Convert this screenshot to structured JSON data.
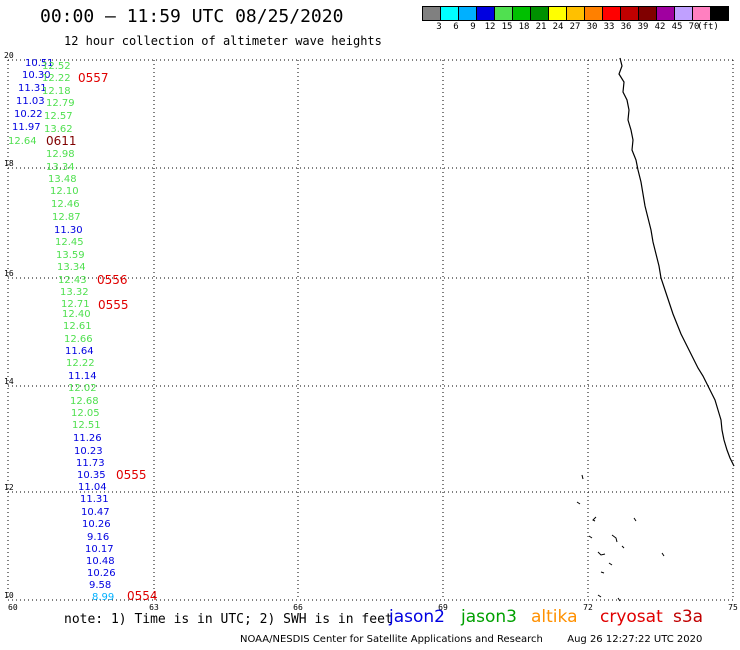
{
  "title": "00:00 – 11:59 UTC 08/25/2020",
  "subtitle": "12 hour collection of altimeter wave heights",
  "legend": {
    "colors": [
      "#808080",
      "#00ffff",
      "#00b0ff",
      "#0000e0",
      "#50e050",
      "#00c000",
      "#009000",
      "#ffff00",
      "#ffc000",
      "#ff8000",
      "#ff0000",
      "#c00000",
      "#800000",
      "#a000a0",
      "#c0a0ff",
      "#ff80c0",
      "#000000"
    ],
    "labels": [
      "3",
      "6",
      "9",
      "12",
      "15",
      "18",
      "21",
      "24",
      "27",
      "30",
      "33",
      "36",
      "39",
      "42",
      "45",
      "70"
    ],
    "unit": "(ft)"
  },
  "axes": {
    "x_ticks": [
      "60",
      "63",
      "66",
      "69",
      "72",
      "75"
    ],
    "y_ticks": [
      "20",
      "18",
      "16",
      "14",
      "12",
      "10"
    ]
  },
  "swh_points": [
    {
      "v": "10.51",
      "c": "#0000e0"
    },
    {
      "v": "12.52",
      "c": "#50e050"
    },
    {
      "v": "10.30",
      "c": "#0000e0"
    },
    {
      "v": "12.22",
      "c": "#50e050"
    },
    {
      "v": "11.31",
      "c": "#0000e0"
    },
    {
      "v": "12.18",
      "c": "#50e050"
    },
    {
      "v": "11.03",
      "c": "#0000e0"
    },
    {
      "v": "12.79",
      "c": "#50e050"
    },
    {
      "v": "10.22",
      "c": "#0000e0"
    },
    {
      "v": "12.57",
      "c": "#50e050"
    },
    {
      "v": "11.97",
      "c": "#0000e0"
    },
    {
      "v": "13.62",
      "c": "#50e050"
    },
    {
      "v": "12.64",
      "c": "#50e050"
    },
    {
      "v": "12.98",
      "c": "#50e050"
    },
    {
      "v": "13.34",
      "c": "#50e050"
    },
    {
      "v": "13.48",
      "c": "#50e050"
    },
    {
      "v": "12.10",
      "c": "#50e050"
    },
    {
      "v": "12.46",
      "c": "#50e050"
    },
    {
      "v": "12.87",
      "c": "#50e050"
    },
    {
      "v": "11.30",
      "c": "#0000e0"
    },
    {
      "v": "12.45",
      "c": "#50e050"
    },
    {
      "v": "13.59",
      "c": "#50e050"
    },
    {
      "v": "13.34",
      "c": "#50e050"
    },
    {
      "v": "12.43",
      "c": "#50e050"
    },
    {
      "v": "13.32",
      "c": "#50e050"
    },
    {
      "v": "12.71",
      "c": "#50e050"
    },
    {
      "v": "12.40",
      "c": "#50e050"
    },
    {
      "v": "12.61",
      "c": "#50e050"
    },
    {
      "v": "12.66",
      "c": "#50e050"
    },
    {
      "v": "11.64",
      "c": "#0000e0"
    },
    {
      "v": "12.22",
      "c": "#50e050"
    },
    {
      "v": "11.14",
      "c": "#0000e0"
    },
    {
      "v": "12.02",
      "c": "#50e050"
    },
    {
      "v": "12.68",
      "c": "#50e050"
    },
    {
      "v": "12.05",
      "c": "#50e050"
    },
    {
      "v": "12.51",
      "c": "#50e050"
    },
    {
      "v": "11.26",
      "c": "#0000e0"
    },
    {
      "v": "10.23",
      "c": "#0000e0"
    },
    {
      "v": "11.73",
      "c": "#0000e0"
    },
    {
      "v": "10.35",
      "c": "#0000e0"
    },
    {
      "v": "11.04",
      "c": "#0000e0"
    },
    {
      "v": "11.31",
      "c": "#0000e0"
    },
    {
      "v": "10.47",
      "c": "#0000e0"
    },
    {
      "v": "10.26",
      "c": "#0000e0"
    },
    {
      "v": "9.16",
      "c": "#0000e0"
    },
    {
      "v": "10.17",
      "c": "#0000e0"
    },
    {
      "v": "10.48",
      "c": "#0000e0"
    },
    {
      "v": "10.26",
      "c": "#0000e0"
    },
    {
      "v": "9.58",
      "c": "#0000e0"
    },
    {
      "v": "8.99",
      "c": "#00b0ff"
    }
  ],
  "time_labels": [
    {
      "t": "0557",
      "c": "#e00000"
    },
    {
      "t": "0611",
      "c": "#800000"
    },
    {
      "t": "0556",
      "c": "#e00000"
    },
    {
      "t": "0555",
      "c": "#e00000"
    },
    {
      "t": "0555",
      "c": "#e00000"
    },
    {
      "t": "0554",
      "c": "#e00000"
    }
  ],
  "note": "note: 1) Time is in UTC; 2) SWH is in feet",
  "satellites": [
    {
      "name": "jason2",
      "color": "#0000e0"
    },
    {
      "name": "jason3",
      "color": "#00a000"
    },
    {
      "name": "altika",
      "color": "#ff9000"
    },
    {
      "name": "cryosat",
      "color": "#e00000"
    },
    {
      "name": "s3a",
      "color": "#c00000"
    }
  ],
  "credit": "NOAA/NESDIS Center for Satellite Applications and Research",
  "timestamp": "Aug 26 12:27:22 UTC 2020"
}
